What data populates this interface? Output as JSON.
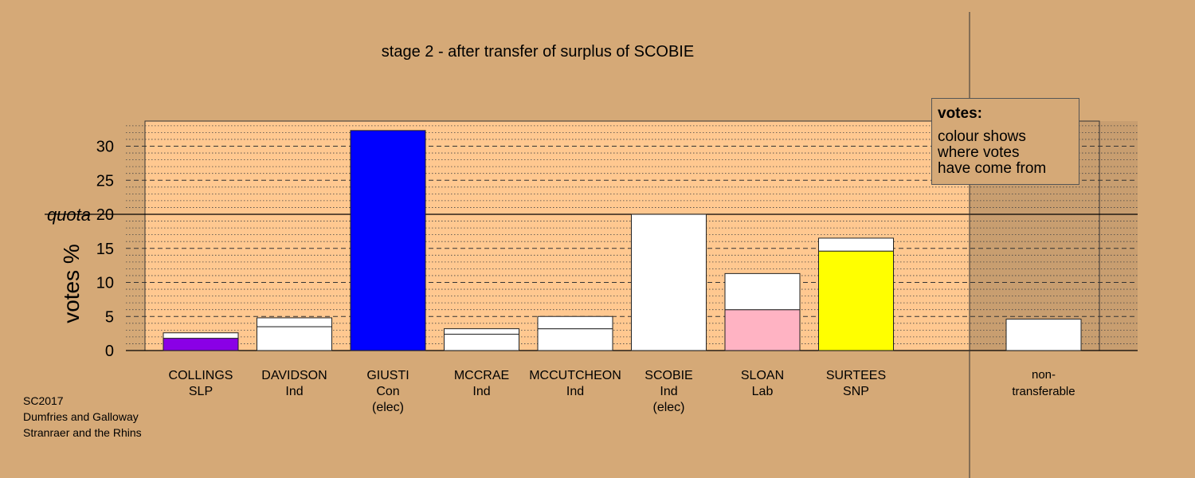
{
  "colors": {
    "background": "#D5A977",
    "plot_area": "#FFC890",
    "ntf_area": "#C89E70"
  },
  "chart_data": {
    "type": "bar",
    "title": "stage 2 - after transfer of surplus of SCOBIE",
    "ylabel": "votes %",
    "ylim": [
      0,
      33.5
    ],
    "yticks": [
      0,
      5,
      10,
      15,
      20,
      25,
      30
    ],
    "quota": {
      "value": 20,
      "label": "quota"
    },
    "grid": true,
    "stacked": true,
    "candidates": [
      {
        "name": "COLLINGS",
        "party": "SLP",
        "elected": "",
        "segments": [
          {
            "value": 1.8,
            "color": "#8A00E6"
          },
          {
            "value": 0.8,
            "color": "#FFFFFF"
          }
        ]
      },
      {
        "name": "DAVIDSON",
        "party": "Ind",
        "elected": "",
        "segments": [
          {
            "value": 3.5,
            "color": "#FFFFFF"
          },
          {
            "value": 1.3,
            "color": "#FFFFFF"
          }
        ]
      },
      {
        "name": "GIUSTI",
        "party": "Con",
        "elected": "(elec)",
        "segments": [
          {
            "value": 32.3,
            "color": "#0000FF"
          }
        ]
      },
      {
        "name": "MCCRAE",
        "party": "Ind",
        "elected": "",
        "segments": [
          {
            "value": 2.4,
            "color": "#FFFFFF"
          },
          {
            "value": 0.8,
            "color": "#FFFFFF"
          }
        ]
      },
      {
        "name": "MCCUTCHEON",
        "party": "Ind",
        "elected": "",
        "segments": [
          {
            "value": 3.2,
            "color": "#FFFFFF"
          },
          {
            "value": 1.8,
            "color": "#FFFFFF"
          }
        ]
      },
      {
        "name": "SCOBIE",
        "party": "Ind",
        "elected": "(elec)",
        "segments": [
          {
            "value": 20.0,
            "color": "#FFFFFF"
          }
        ]
      },
      {
        "name": "SLOAN",
        "party": "Lab",
        "elected": "",
        "segments": [
          {
            "value": 6.0,
            "color": "#FFB3C3"
          },
          {
            "value": 5.3,
            "color": "#FFFFFF"
          }
        ]
      },
      {
        "name": "SURTEES",
        "party": "SNP",
        "elected": "",
        "segments": [
          {
            "value": 14.6,
            "color": "#FFFF00"
          },
          {
            "value": 1.9,
            "color": "#FFFFFF"
          }
        ]
      }
    ],
    "nontransferable": {
      "label_line1": "non-",
      "label_line2": "transferable",
      "value": 4.6,
      "color": "#FFFFFF"
    },
    "legend": {
      "title": "votes:",
      "lines": [
        "colour shows",
        "where votes",
        "have come from"
      ],
      "placement": "top-right"
    }
  },
  "footer": {
    "line1": "SC2017",
    "line2": "Dumfries and Galloway",
    "line3": "Stranraer and the Rhins"
  }
}
